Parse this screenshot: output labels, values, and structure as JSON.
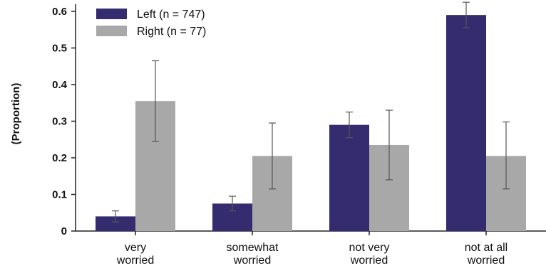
{
  "chart_data": {
    "type": "bar",
    "categories": [
      [
        "very",
        "worried"
      ],
      [
        "somewhat",
        "worried"
      ],
      [
        "not very",
        "worried"
      ],
      [
        "not at all",
        "worried"
      ]
    ],
    "series": [
      {
        "name": "Left (n = 747)",
        "color": "#352c70",
        "values": [
          0.04,
          0.075,
          0.29,
          0.59
        ],
        "error_low": [
          0.025,
          0.055,
          0.255,
          0.555
        ],
        "error_high": [
          0.055,
          0.095,
          0.325,
          0.625
        ]
      },
      {
        "name": "Right (n = 77)",
        "color": "#a8a8a8",
        "values": [
          0.355,
          0.205,
          0.235,
          0.205
        ],
        "error_low": [
          0.245,
          0.115,
          0.14,
          0.115
        ],
        "error_high": [
          0.465,
          0.295,
          0.33,
          0.298
        ]
      }
    ],
    "ylabel": "(Proportion)",
    "xlabel": "",
    "ylim": [
      0,
      0.6
    ],
    "yticks": [
      "0",
      "0.1",
      "0.2",
      "0.3",
      "0.4",
      "0.5",
      "0.6"
    ],
    "grid": false,
    "legend_position": "top-left",
    "error_bar_color": "#555555",
    "axis_color": "#222222"
  }
}
